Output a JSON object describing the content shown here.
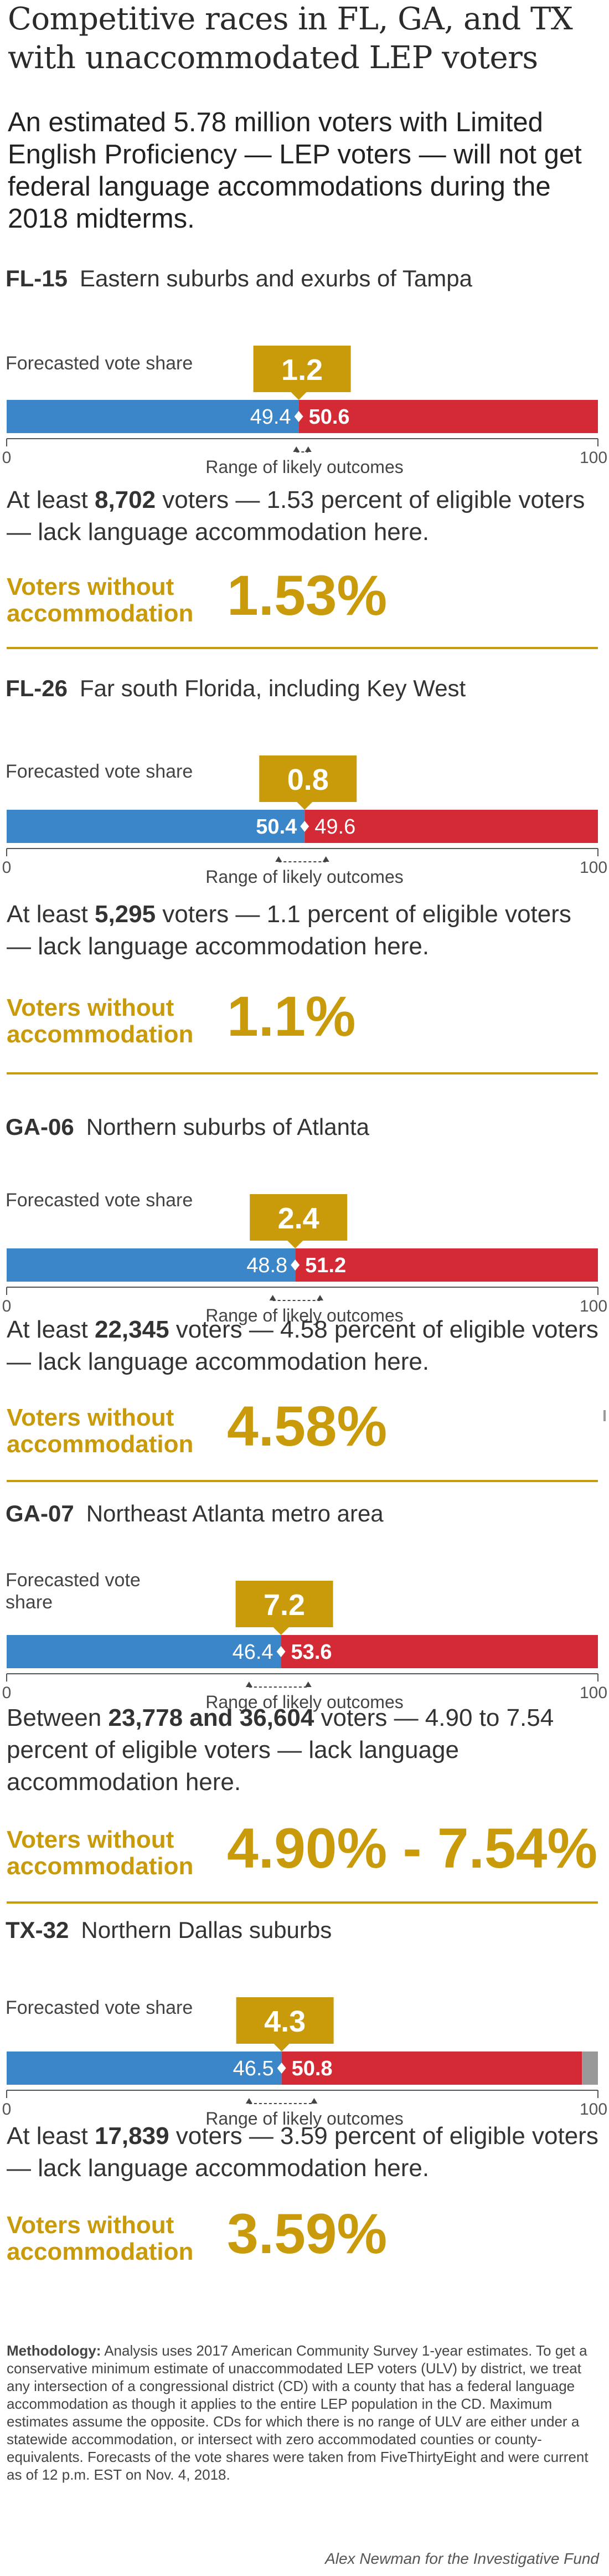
{
  "title": "Competitive races in FL, GA, and TX with unaccommodated LEP voters",
  "intro": "An estimated 5.78 million voters with Limited English Proficiency — LEP voters — will not get federal language accommodations during the 2018 midterms.",
  "labels": {
    "forecasted_vote_share": "Forecasted vote share",
    "range_of_likely_outcomes": "Range of likely outcomes",
    "voters_without_accommodation_1": "Voters without",
    "voters_without_accommodation_2": "accommodation",
    "axis_min": "0",
    "axis_max": "100"
  },
  "colors": {
    "dem": "#3a86c8",
    "rep": "#d42a35",
    "accent": "#c99a0a",
    "other": "#999999"
  },
  "chart_data": [
    {
      "type": "bar",
      "district": "FL-15",
      "description": "Eastern suburbs and exurbs of Tampa",
      "xlim": [
        0,
        100
      ],
      "ticks": [
        "0",
        "100"
      ],
      "series": [
        {
          "party": "dem",
          "value": 49.4,
          "label": "49.4"
        },
        {
          "party": "rep",
          "value": 50.6,
          "label": "50.6"
        }
      ],
      "margin": "1.2",
      "range_marks": [
        49,
        51
      ],
      "text_pre": "At least ",
      "text_bold": "8,702",
      "text_post": " voters — 1.53 percent of eligible voters — lack language accommodation here.",
      "pct": "1.53%"
    },
    {
      "type": "bar",
      "district": "FL-26",
      "description": "Far south Florida, including Key West",
      "xlim": [
        0,
        100
      ],
      "ticks": [
        "0",
        "100"
      ],
      "series": [
        {
          "party": "dem",
          "value": 50.4,
          "label": "50.4"
        },
        {
          "party": "rep",
          "value": 49.6,
          "label": "49.6"
        }
      ],
      "margin": "0.8",
      "range_marks": [
        46,
        54
      ],
      "text_pre": "At least ",
      "text_bold": "5,295",
      "text_post": " voters — 1.1 percent of eligible voters — lack language accommodation here.",
      "pct": "1.1%"
    },
    {
      "type": "bar",
      "district": "GA-06",
      "description": "Northern suburbs of Atlanta",
      "xlim": [
        0,
        100
      ],
      "ticks": [
        "0",
        "100"
      ],
      "series": [
        {
          "party": "dem",
          "value": 48.8,
          "label": "48.8"
        },
        {
          "party": "rep",
          "value": 51.2,
          "label": "51.2"
        }
      ],
      "margin": "2.4",
      "range_marks": [
        45,
        53
      ],
      "text_pre": "At least ",
      "text_bold": "22,345",
      "text_post": " voters — 4.58 percent of eligible voters — lack language accommodation here.",
      "pct": "4.58%"
    },
    {
      "type": "bar",
      "district": "GA-07",
      "description": "Northeast Atlanta metro area",
      "xlim": [
        0,
        100
      ],
      "ticks": [
        "0",
        "100"
      ],
      "series": [
        {
          "party": "dem",
          "value": 46.4,
          "label": "46.4"
        },
        {
          "party": "rep",
          "value": 53.6,
          "label": "53.6"
        }
      ],
      "margin": "7.2",
      "range_marks": [
        41,
        51
      ],
      "text_pre": "Between ",
      "text_bold": "23,778 and 36,604",
      "text_post": " voters — 4.90 to 7.54 percent of eligible voters — lack language accommodation here.",
      "pct": "4.90% - 7.54%"
    },
    {
      "type": "bar",
      "district": "TX-32",
      "description": "Northern Dallas suburbs",
      "xlim": [
        0,
        100
      ],
      "ticks": [
        "0",
        "100"
      ],
      "series": [
        {
          "party": "dem",
          "value": 46.5,
          "label": "46.5"
        },
        {
          "party": "rep",
          "value": 50.8,
          "label": "50.8"
        },
        {
          "party": "other",
          "value": 2.7,
          "label": ""
        }
      ],
      "margin": "4.3",
      "range_marks": [
        41,
        52
      ],
      "text_pre": "At least ",
      "text_bold": "17,839",
      "text_post": " voters — 3.59 percent of eligible voters — lack language accommodation here.",
      "pct": "3.59%"
    }
  ],
  "methodology_label": "Methodology:",
  "methodology": " Analysis uses 2017 American Community Survey 1-year estimates. To get a conservative minimum estimate of unaccommodated LEP voters (ULV) by district, we treat any intersection of a congressional district (CD) with a county that has a federal language accommodation as though it applies to the entire LEP population in the CD. Maximum estimates assume the opposite. CDs for which there is no range of ULV are either under a statewide accommodation, or intersect with zero accommodated counties or county-equivalents. Forecasts of the vote shares were taken from FiveThirtyEight and were current as of 12 p.m. EST on Nov. 4, 2018.",
  "credit": "Alex Newman for the Investigative Fund"
}
